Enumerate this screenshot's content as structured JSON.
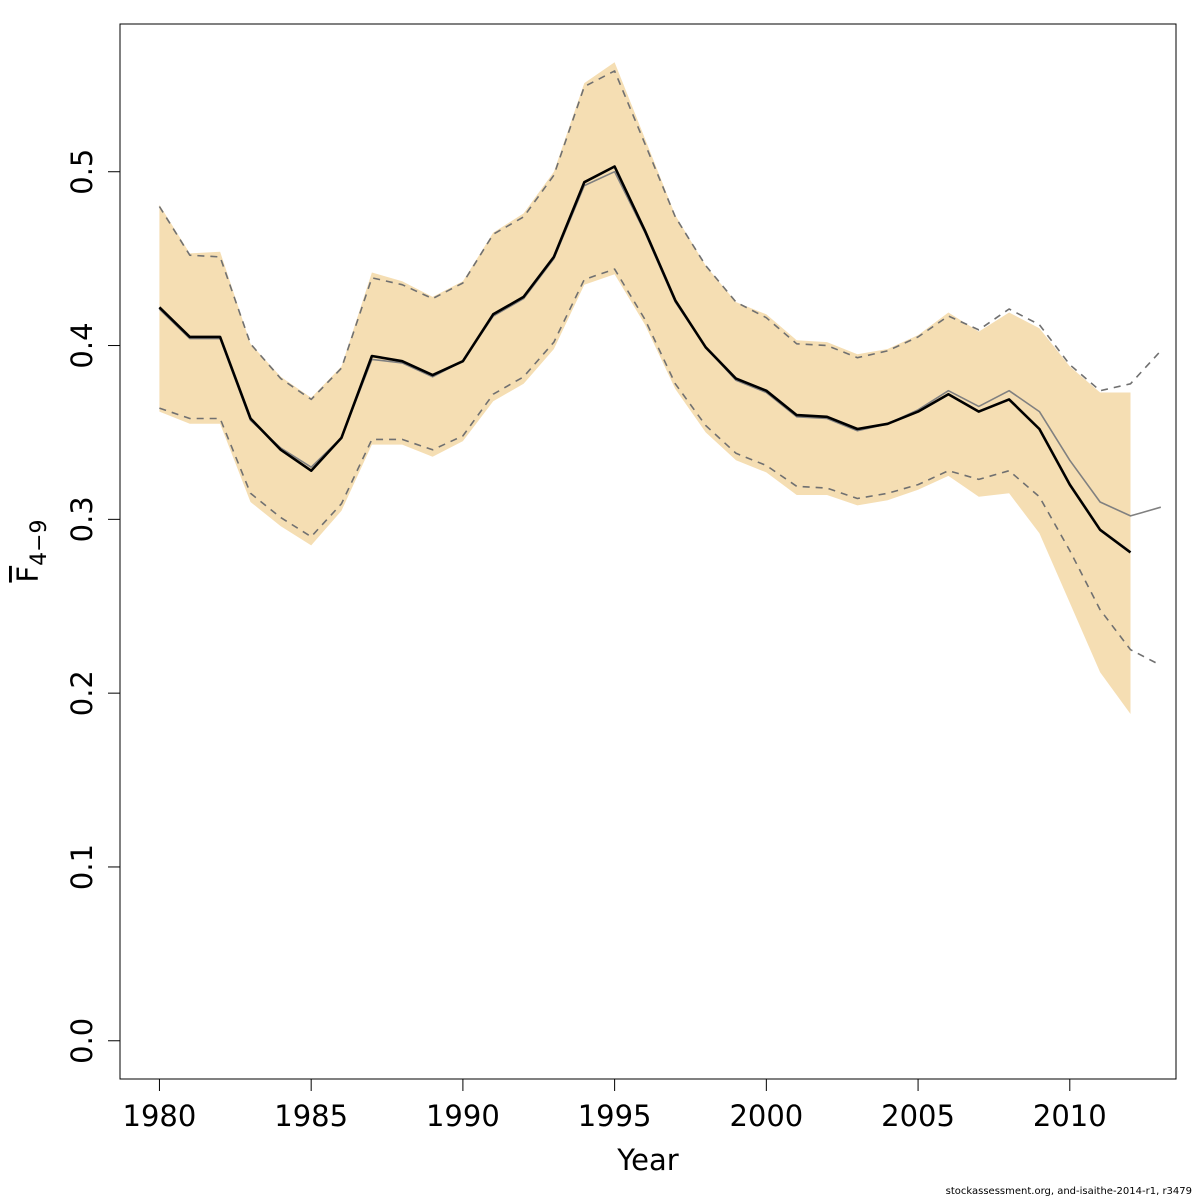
{
  "chart_data": {
    "type": "line",
    "xlabel": "Year",
    "ylabel_main": "F",
    "ylabel_sub": "4−9",
    "xlim": [
      1978.7,
      2013.5
    ],
    "ylim": [
      -0.022,
      0.585
    ],
    "x_ticks": [
      1980,
      1985,
      1990,
      1995,
      2000,
      2005,
      2010
    ],
    "y_ticks": [
      0.0,
      0.1,
      0.2,
      0.3,
      0.4,
      0.5
    ],
    "y_tick_labels": [
      "0.0",
      "0.1",
      "0.2",
      "0.3",
      "0.4",
      "0.5"
    ],
    "x_tick_labels": [
      "1980",
      "1985",
      "1990",
      "1995",
      "2000",
      "2005",
      "2010"
    ],
    "colors": {
      "band": "#f5deb3",
      "main_line": "#000000",
      "retro_line": "#808080",
      "retro_ci": "#707070",
      "frame": "#000000"
    },
    "band": {
      "x": [
        1980,
        1981,
        1982,
        1983,
        1984,
        1985,
        1986,
        1987,
        1988,
        1989,
        1990,
        1991,
        1992,
        1993,
        1994,
        1995,
        1996,
        1997,
        1998,
        1999,
        2000,
        2001,
        2002,
        2003,
        2004,
        2005,
        2006,
        2007,
        2008,
        2009,
        2010,
        2011,
        2012
      ],
      "lower": [
        0.362,
        0.355,
        0.355,
        0.31,
        0.296,
        0.285,
        0.305,
        0.343,
        0.343,
        0.336,
        0.345,
        0.368,
        0.378,
        0.398,
        0.435,
        0.441,
        0.412,
        0.375,
        0.35,
        0.334,
        0.327,
        0.314,
        0.314,
        0.308,
        0.311,
        0.317,
        0.325,
        0.313,
        0.315,
        0.292,
        0.252,
        0.212,
        0.188
      ],
      "upper": [
        0.481,
        0.453,
        0.454,
        0.401,
        0.382,
        0.37,
        0.388,
        0.442,
        0.437,
        0.428,
        0.437,
        0.465,
        0.476,
        0.5,
        0.551,
        0.563,
        0.519,
        0.475,
        0.446,
        0.425,
        0.418,
        0.403,
        0.402,
        0.395,
        0.398,
        0.406,
        0.419,
        0.408,
        0.419,
        0.41,
        0.388,
        0.373,
        0.373
      ]
    },
    "series": [
      {
        "x": [
          1980,
          1981,
          1982,
          1983,
          1984,
          1985,
          1986,
          1987,
          1988,
          1989,
          1990,
          1991,
          1992,
          1993,
          1994,
          1995,
          1996,
          1997,
          1998,
          1999,
          2000,
          2001,
          2002,
          2003,
          2004,
          2005,
          2006,
          2007,
          2008,
          2009,
          2010,
          2011,
          2012
        ],
        "values": [
          0.422,
          0.405,
          0.405,
          0.358,
          0.34,
          0.328,
          0.347,
          0.394,
          0.391,
          0.383,
          0.391,
          0.418,
          0.428,
          0.451,
          0.494,
          0.503,
          0.466,
          0.426,
          0.399,
          0.381,
          0.374,
          0.36,
          0.359,
          0.352,
          0.355,
          0.362,
          0.372,
          0.362,
          0.369,
          0.352,
          0.32,
          0.294,
          0.281
        ]
      },
      {
        "x": [
          1980,
          1981,
          1982,
          1983,
          1984,
          1985,
          1986,
          1987,
          1988,
          1989,
          1990,
          1991,
          1992,
          1993,
          1994,
          1995,
          1996,
          1997,
          1998,
          1999,
          2000,
          2001,
          2002,
          2003,
          2004,
          2005,
          2006,
          2007,
          2008,
          2009,
          2010,
          2011,
          2012,
          2013
        ],
        "values": [
          0.421,
          0.404,
          0.404,
          0.357,
          0.341,
          0.33,
          0.347,
          0.392,
          0.39,
          0.382,
          0.391,
          0.417,
          0.427,
          0.45,
          0.492,
          0.5,
          0.465,
          0.425,
          0.399,
          0.38,
          0.373,
          0.359,
          0.358,
          0.351,
          0.355,
          0.363,
          0.374,
          0.365,
          0.374,
          0.362,
          0.334,
          0.31,
          0.302,
          0.307
        ]
      },
      {
        "x": [
          1980,
          1981,
          1982,
          1983,
          1984,
          1985,
          1986,
          1987,
          1988,
          1989,
          1990,
          1991,
          1992,
          1993,
          1994,
          1995,
          1996,
          1997,
          1998,
          1999,
          2000,
          2001,
          2002,
          2003,
          2004,
          2005,
          2006,
          2007,
          2008,
          2009,
          2010,
          2011,
          2012,
          2013
        ],
        "values": [
          0.48,
          0.452,
          0.451,
          0.401,
          0.381,
          0.369,
          0.387,
          0.439,
          0.435,
          0.427,
          0.436,
          0.464,
          0.474,
          0.498,
          0.549,
          0.558,
          0.516,
          0.474,
          0.446,
          0.425,
          0.416,
          0.401,
          0.4,
          0.393,
          0.397,
          0.405,
          0.417,
          0.409,
          0.421,
          0.412,
          0.389,
          0.374,
          0.378,
          0.397
        ]
      },
      {
        "x": [
          1980,
          1981,
          1982,
          1983,
          1984,
          1985,
          1986,
          1987,
          1988,
          1989,
          1990,
          1991,
          1992,
          1993,
          1994,
          1995,
          1996,
          1997,
          1998,
          1999,
          2000,
          2001,
          2002,
          2003,
          2004,
          2005,
          2006,
          2007,
          2008,
          2009,
          2010,
          2011,
          2012,
          2013
        ],
        "values": [
          0.364,
          0.358,
          0.358,
          0.315,
          0.301,
          0.29,
          0.309,
          0.346,
          0.346,
          0.34,
          0.348,
          0.372,
          0.382,
          0.402,
          0.438,
          0.444,
          0.415,
          0.378,
          0.354,
          0.338,
          0.331,
          0.319,
          0.318,
          0.312,
          0.315,
          0.32,
          0.328,
          0.323,
          0.328,
          0.313,
          0.282,
          0.248,
          0.225,
          0.216
        ]
      }
    ]
  },
  "credit": "stockassessment.org, and-isaithe-2014-r1, r3479"
}
